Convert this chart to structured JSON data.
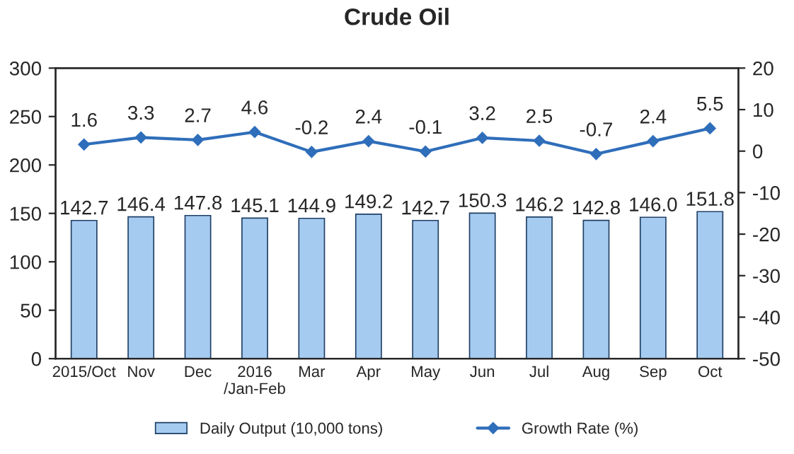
{
  "chart_data": {
    "type": "bar",
    "title": "Crude Oil",
    "categories": [
      "2015/Oct",
      "Nov",
      "Dec",
      "2016\n/Jan-Feb",
      "Mar",
      "Apr",
      "May",
      "Jun",
      "Jul",
      "Aug",
      "Sep",
      "Oct"
    ],
    "series": [
      {
        "name": "Daily Output (10,000 tons)",
        "color": "#a6cbf0",
        "values": [
          142.7,
          146.4,
          147.8,
          145.1,
          144.9,
          149.2,
          142.7,
          150.3,
          146.2,
          142.8,
          146.0,
          151.8
        ],
        "value_labels": [
          "142.7",
          "146.4",
          "147.8",
          "145.1",
          "144.9",
          "149.2",
          "142.7",
          "150.3",
          "146.2",
          "142.8",
          "146.0",
          "151.8"
        ]
      },
      {
        "name": "Growth Rate (%)",
        "type": "line",
        "axis": "y2",
        "color": "#2f6eba",
        "marker": "diamond",
        "values": [
          1.6,
          3.3,
          2.7,
          4.6,
          -0.2,
          2.4,
          -0.1,
          3.2,
          2.5,
          -0.7,
          2.4,
          5.5
        ]
      }
    ],
    "ylim": [
      0,
      300
    ],
    "yticks": [
      0,
      50,
      100,
      150,
      200,
      250,
      300
    ],
    "y2lim": [
      -50,
      20
    ],
    "y2ticks": [
      -50,
      -40,
      -30,
      -20,
      -10,
      0,
      10,
      20
    ],
    "data_labels": true,
    "legend": "bottom",
    "grid": false
  }
}
